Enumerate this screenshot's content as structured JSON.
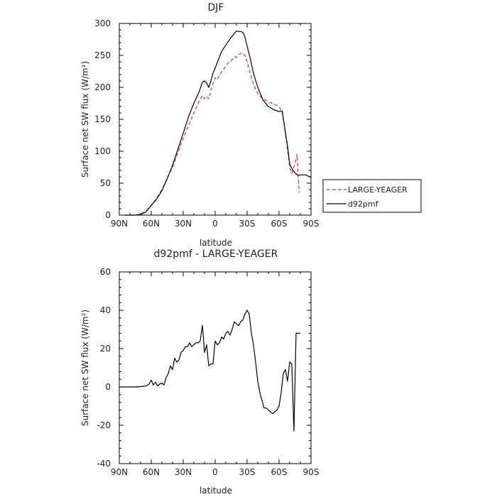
{
  "chart_data": [
    {
      "type": "line",
      "title": "DJF",
      "xlabel": "latitude",
      "ylabel": "Surface net SW flux (W/m²)",
      "xlim": [
        -90,
        90
      ],
      "ylim": [
        0,
        300
      ],
      "xticks": [
        -90,
        -60,
        -30,
        0,
        30,
        60,
        90
      ],
      "xtick_labels": [
        "90N",
        "60N",
        "30N",
        "0",
        "30S",
        "60S",
        "90S"
      ],
      "yticks": [
        0,
        50,
        100,
        150,
        200,
        250,
        300
      ],
      "legend_position": "outside-right",
      "series": [
        {
          "name": "LARGE-YEAGER",
          "color": "#e03030",
          "dash": true,
          "x": [
            -85,
            -80,
            -75,
            -70,
            -65,
            -60,
            -55,
            -50,
            -45,
            -40,
            -35,
            -30,
            -25,
            -20,
            -15,
            -12,
            -10,
            -8,
            -6,
            -4,
            -2,
            0,
            2,
            4,
            6,
            8,
            10,
            12,
            15,
            18,
            20,
            22,
            25,
            28,
            30,
            33,
            36,
            40,
            45,
            50,
            55,
            60,
            63,
            65,
            68,
            70,
            72,
            75,
            77,
            78,
            79
          ],
          "y": [
            0,
            0,
            0,
            2,
            6,
            16,
            26,
            40,
            58,
            75,
            97,
            120,
            140,
            160,
            178,
            187,
            182,
            186,
            182,
            195,
            206,
            215,
            212,
            218,
            224,
            228,
            233,
            238,
            241,
            248,
            247,
            251,
            254,
            250,
            240,
            222,
            205,
            190,
            182,
            177,
            174,
            170,
            160,
            140,
            103,
            75,
            65,
            82,
            95,
            60,
            35
          ]
        },
        {
          "name": "d92pmf",
          "color": "#000000",
          "dash": false,
          "x": [
            -85,
            -80,
            -75,
            -70,
            -65,
            -60,
            -55,
            -50,
            -45,
            -40,
            -35,
            -30,
            -25,
            -20,
            -15,
            -12,
            -10,
            -8,
            -6,
            -4,
            -2,
            0,
            3,
            6,
            10,
            15,
            20,
            25,
            27,
            30,
            33,
            36,
            40,
            45,
            50,
            55,
            60,
            63,
            65,
            68,
            70,
            72,
            75,
            78,
            80,
            85,
            90
          ],
          "y": [
            0,
            0,
            0,
            1,
            5,
            15,
            25,
            38,
            57,
            78,
            103,
            128,
            154,
            175,
            193,
            208,
            210,
            207,
            200,
            210,
            222,
            230,
            243,
            256,
            266,
            278,
            288,
            287,
            284,
            265,
            245,
            222,
            200,
            180,
            170,
            165,
            162,
            163,
            140,
            108,
            80,
            73,
            66,
            62,
            63,
            63,
            59
          ]
        }
      ]
    },
    {
      "type": "line",
      "title": "d92pmf - LARGE-YEAGER",
      "xlabel": "latitude",
      "ylabel": "Surface net SW flux (W/m²)",
      "xlim": [
        -90,
        90
      ],
      "ylim": [
        -40,
        60
      ],
      "xticks": [
        -90,
        -60,
        -30,
        0,
        30,
        60,
        90
      ],
      "xtick_labels": [
        "90N",
        "60N",
        "30N",
        "0",
        "30S",
        "60S",
        "90S"
      ],
      "yticks": [
        -40,
        -20,
        0,
        20,
        40,
        60
      ],
      "series": [
        {
          "name": "",
          "color": "#000000",
          "dash": false,
          "x": [
            -90,
            -80,
            -75,
            -70,
            -65,
            -62,
            -60,
            -58,
            -56,
            -54,
            -52,
            -50,
            -48,
            -46,
            -44,
            -42,
            -40,
            -38,
            -36,
            -34,
            -32,
            -30,
            -28,
            -26,
            -24,
            -22,
            -20,
            -18,
            -16,
            -14,
            -12,
            -11,
            -10,
            -8,
            -6,
            -4,
            -2,
            0,
            2,
            4,
            6,
            8,
            10,
            12,
            14,
            16,
            18,
            20,
            22,
            24,
            26,
            28,
            30,
            32,
            34,
            36,
            38,
            40,
            42,
            44,
            46,
            48,
            50,
            52,
            54,
            56,
            58,
            60,
            62,
            64,
            66,
            68,
            70,
            72,
            74,
            76,
            78,
            80
          ],
          "y": [
            0,
            0,
            0,
            0.2,
            0.5,
            1.5,
            3.5,
            1,
            2.5,
            0.5,
            1.5,
            2,
            1,
            5,
            7,
            11,
            9,
            15,
            13,
            14,
            18,
            19,
            21,
            21,
            23,
            21,
            22,
            23,
            23,
            24,
            32,
            26,
            18,
            22,
            11,
            12,
            12,
            24,
            22,
            23,
            26,
            25,
            28,
            29,
            27,
            30,
            34,
            33,
            32,
            34,
            35,
            38,
            40,
            38,
            28,
            22,
            13,
            3,
            -3,
            -7,
            -11,
            -11,
            -12,
            -13,
            -14,
            -13,
            -12,
            -10,
            -3,
            7,
            9,
            3,
            13,
            12,
            -23,
            28,
            28,
            28
          ]
        }
      ]
    }
  ]
}
